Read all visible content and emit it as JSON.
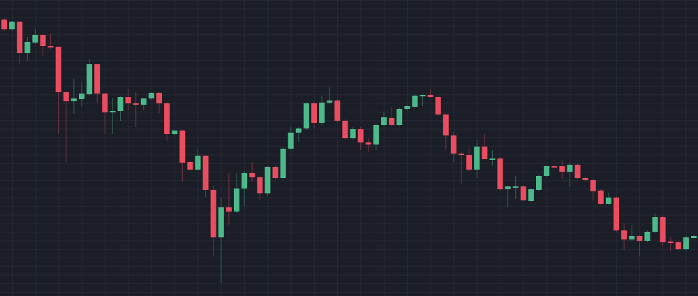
{
  "chart_data": {
    "type": "candlestick",
    "title": "",
    "xlabel": "",
    "ylabel": "",
    "ylim": [
      76,
      500
    ],
    "grid": true,
    "legend": "none",
    "colors": {
      "background": "#1b1e27",
      "grid": "#2a2e3a",
      "up": "#4cb98a",
      "down": "#ea4d5f"
    },
    "columns": [
      "open",
      "high",
      "low",
      "close"
    ],
    "candles": [
      [
        472,
        474,
        456,
        458
      ],
      [
        458,
        470,
        456,
        469
      ],
      [
        469,
        470,
        408,
        424
      ],
      [
        424,
        447,
        413,
        440
      ],
      [
        439,
        459,
        437,
        450
      ],
      [
        450,
        452,
        420,
        434
      ],
      [
        434,
        452,
        430,
        432
      ],
      [
        433,
        434,
        308,
        368
      ],
      [
        368,
        369,
        268,
        355
      ],
      [
        355,
        387,
        337,
        359
      ],
      [
        358,
        383,
        348,
        366
      ],
      [
        365,
        415,
        363,
        408
      ],
      [
        408,
        409,
        353,
        366
      ],
      [
        366,
        367,
        308,
        339
      ],
      [
        339,
        360,
        308,
        341
      ],
      [
        341,
        362,
        327,
        361
      ],
      [
        361,
        372,
        342,
        352
      ],
      [
        352,
        368,
        318,
        350
      ],
      [
        350,
        360,
        342,
        359
      ],
      [
        359,
        368,
        357,
        367
      ],
      [
        367,
        368,
        338,
        352
      ],
      [
        352,
        354,
        298,
        308
      ],
      [
        308,
        314,
        306,
        313
      ],
      [
        313,
        314,
        240,
        267
      ],
      [
        268,
        269,
        256,
        257
      ],
      [
        257,
        287,
        255,
        277
      ],
      [
        277,
        278,
        218,
        228
      ],
      [
        228,
        234,
        133,
        160
      ],
      [
        160,
        217,
        95,
        203
      ],
      [
        203,
        252,
        178,
        197
      ],
      [
        197,
        252,
        195,
        230
      ],
      [
        230,
        255,
        205,
        252
      ],
      [
        252,
        268,
        240,
        246
      ],
      [
        246,
        248,
        213,
        223
      ],
      [
        223,
        262,
        220,
        261
      ],
      [
        261,
        263,
        243,
        245
      ],
      [
        245,
        289,
        243,
        287
      ],
      [
        287,
        318,
        285,
        310
      ],
      [
        310,
        318,
        297,
        316
      ],
      [
        316,
        354,
        313,
        352
      ],
      [
        352,
        354,
        317,
        324
      ],
      [
        324,
        363,
        320,
        353
      ],
      [
        353,
        375,
        351,
        356
      ],
      [
        356,
        358,
        325,
        327
      ],
      [
        327,
        329,
        300,
        302
      ],
      [
        302,
        318,
        300,
        315
      ],
      [
        315,
        318,
        285,
        296
      ],
      [
        296,
        302,
        282,
        293
      ],
      [
        293,
        323,
        285,
        321
      ],
      [
        321,
        340,
        319,
        332
      ],
      [
        331,
        347,
        319,
        321
      ],
      [
        321,
        346,
        319,
        344
      ],
      [
        344,
        350,
        342,
        348
      ],
      [
        347,
        365,
        345,
        363
      ],
      [
        363,
        365,
        348,
        364
      ],
      [
        364,
        372,
        360,
        361
      ],
      [
        361,
        362,
        334,
        336
      ],
      [
        336,
        337,
        285,
        306
      ],
      [
        306,
        312,
        268,
        280
      ],
      [
        280,
        283,
        237,
        278
      ],
      [
        278,
        287,
        255,
        257
      ],
      [
        257,
        300,
        245,
        290
      ],
      [
        290,
        308,
        272,
        272
      ],
      [
        272,
        285,
        262,
        273
      ],
      [
        273,
        275,
        227,
        229
      ],
      [
        229,
        234,
        203,
        233
      ],
      [
        232,
        248,
        215,
        233
      ],
      [
        233,
        235,
        212,
        213
      ],
      [
        212,
        230,
        210,
        229
      ],
      [
        228,
        250,
        226,
        248
      ],
      [
        248,
        264,
        246,
        262
      ],
      [
        262,
        263,
        260,
        261
      ],
      [
        262,
        270,
        244,
        254
      ],
      [
        254,
        266,
        232,
        264
      ],
      [
        264,
        266,
        243,
        245
      ],
      [
        245,
        247,
        240,
        242
      ],
      [
        242,
        244,
        213,
        226
      ],
      [
        227,
        229,
        206,
        208
      ],
      [
        208,
        224,
        206,
        217
      ],
      [
        217,
        219,
        168,
        170
      ],
      [
        170,
        180,
        142,
        157
      ],
      [
        157,
        178,
        155,
        162
      ],
      [
        162,
        164,
        133,
        155
      ],
      [
        155,
        170,
        153,
        168
      ],
      [
        168,
        195,
        166,
        189
      ],
      [
        189,
        191,
        148,
        153
      ],
      [
        154,
        160,
        140,
        153
      ],
      [
        153,
        155,
        141,
        143
      ],
      [
        143,
        162,
        141,
        160
      ],
      [
        159,
        164,
        157,
        162
      ]
    ]
  }
}
